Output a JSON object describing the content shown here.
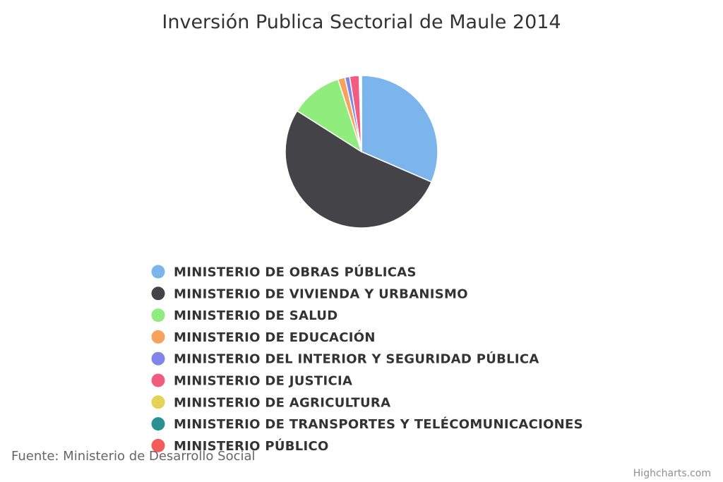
{
  "chart_data": {
    "type": "pie",
    "title": "Inversión Publica Sectorial de Maule 2014",
    "series": [
      {
        "points": [
          {
            "name": "MINISTERIO DE OBRAS PÚBLICAS",
            "y": 31.5,
            "color": "#7cb5ec"
          },
          {
            "name": "MINISTERIO DE VIVIENDA Y URBANISMO",
            "y": 52.5,
            "color": "#434348"
          },
          {
            "name": "MINISTERIO DE SALUD",
            "y": 11.0,
            "color": "#90ed7d"
          },
          {
            "name": "MINISTERIO DE EDUCACIÓN",
            "y": 1.5,
            "color": "#f7a35c"
          },
          {
            "name": "MINISTERIO DEL INTERIOR Y SEGURIDAD PÚBLICA",
            "y": 1.0,
            "color": "#8085e9"
          },
          {
            "name": "MINISTERIO DE JUSTICIA",
            "y": 2.0,
            "color": "#f15c80"
          },
          {
            "name": "MINISTERIO DE AGRICULTURA",
            "y": 0.2,
            "color": "#e4d354"
          },
          {
            "name": "MINISTERIO DE TRANSPORTES Y TELÉCOMUNICACIONES",
            "y": 0.2,
            "color": "#2b908f"
          },
          {
            "name": "MINISTERIO PÚBLICO",
            "y": 0.1,
            "color": "#f45b5b"
          }
        ]
      }
    ],
    "legend_position": "bottom",
    "source": "Fuente: Ministerio de Desarrollo Social",
    "credits": "Highcharts.com"
  }
}
